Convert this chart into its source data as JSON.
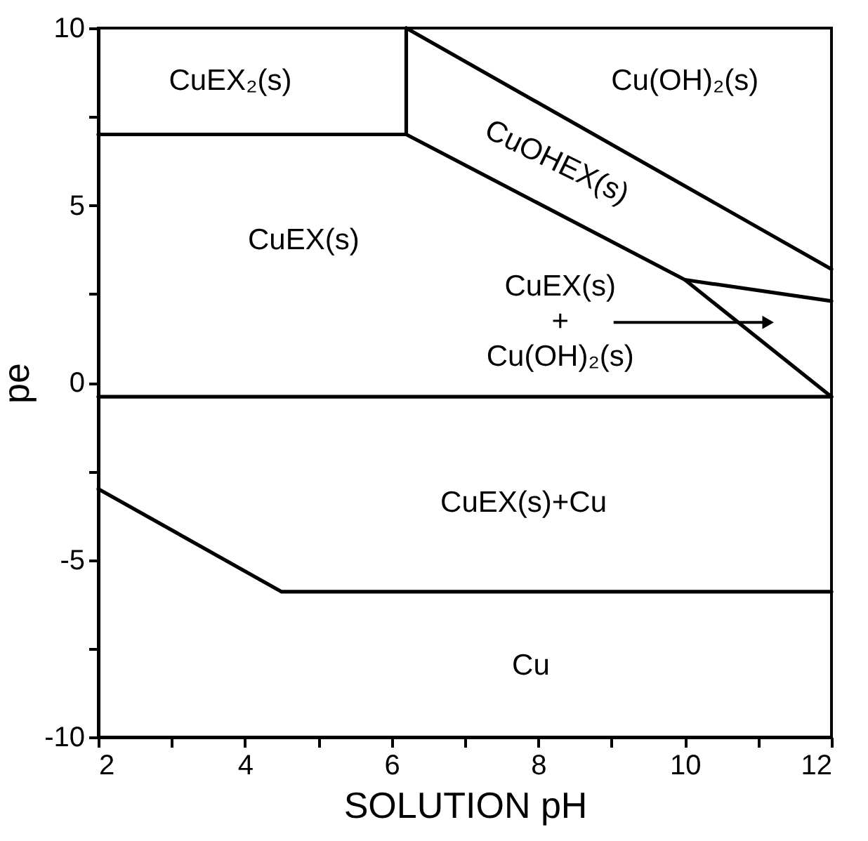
{
  "chart_data": {
    "type": "line",
    "xlabel": "SOLUTION pH",
    "ylabel": "pe",
    "xlim": [
      2,
      12
    ],
    "ylim": [
      -10,
      10
    ],
    "xticks": [
      2,
      {
        "value": 3,
        "label": null
      },
      4,
      {
        "value": 5,
        "label": null
      },
      6,
      {
        "value": 7,
        "label": null
      },
      8,
      {
        "value": 9,
        "label": null
      },
      10,
      {
        "value": 11,
        "label": null
      },
      12
    ],
    "yticks": [
      -10,
      {
        "value": -7.5,
        "label": null
      },
      -5,
      {
        "value": -2.5,
        "label": null
      },
      0,
      {
        "value": 2.5,
        "label": null
      },
      5,
      {
        "value": 7.5,
        "label": null
      },
      10
    ],
    "series": [
      {
        "color": "#000000",
        "x": [
          2,
          6.2
        ],
        "values": [
          7,
          7
        ]
      },
      {
        "color": "#000000",
        "x": [
          6.2,
          6.2
        ],
        "values": [
          7,
          10
        ]
      },
      {
        "color": "#000000",
        "x": [
          6.2,
          12
        ],
        "values": [
          10,
          3.2
        ]
      },
      {
        "color": "#000000",
        "x": [
          6.2,
          10,
          12
        ],
        "values": [
          7,
          2.9,
          -0.4
        ]
      },
      {
        "color": "#000000",
        "x": [
          10,
          12
        ],
        "values": [
          2.9,
          2.3
        ]
      },
      {
        "color": "#000000",
        "x": [
          2,
          12
        ],
        "values": [
          -0.4,
          -0.4
        ]
      },
      {
        "color": "#000000",
        "x": [
          2,
          4.5,
          12
        ],
        "values": [
          -3,
          -5.9,
          -5.9
        ]
      }
    ],
    "annotations": [
      "CuEX₂(s)",
      "CuEX(s)",
      "Cu(OH)₂(s)",
      "CuOHEX(s)",
      "CuEX(s)\n+\nCu(OH)₂(s)",
      "CuEX(s)+Cu",
      "Cu"
    ],
    "line_style": "solid"
  }
}
